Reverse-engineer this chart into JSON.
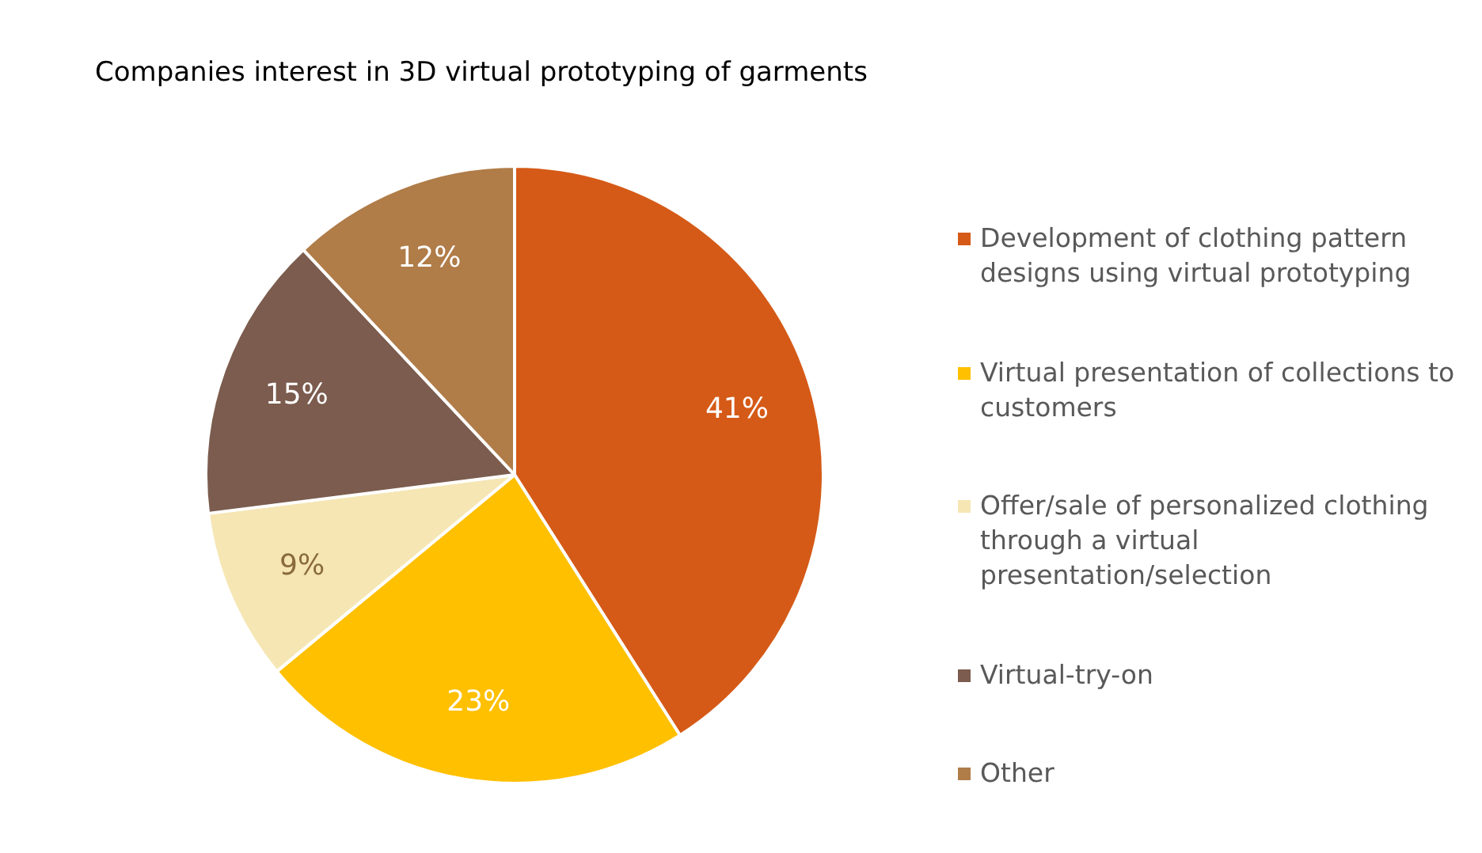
{
  "chart_data": {
    "type": "pie",
    "title": "Companies interest in 3D virtual prototyping of garments",
    "categories": [
      "Development of clothing pattern designs using virtual prototyping",
      "Virtual presentation of collections to customers",
      "Offer/sale of personalized clothing through a virtual presentation/selection",
      "Virtual-try-on",
      "Other"
    ],
    "values": [
      41,
      23,
      9,
      15,
      12
    ],
    "colors": [
      "#d55a17",
      "#ffc000",
      "#f5e6b4",
      "#7b5c4e",
      "#b07c48"
    ],
    "value_labels": [
      "41%",
      "23%",
      "9%",
      "15%",
      "12%"
    ],
    "legend": "right"
  }
}
